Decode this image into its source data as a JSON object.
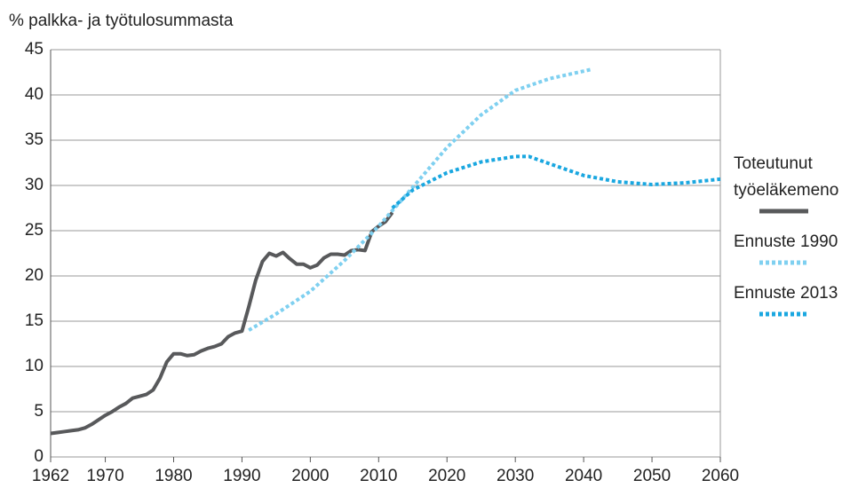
{
  "chart_data": {
    "type": "line",
    "y_label": "% palkka-  ja työtulosummasta",
    "xlim": [
      1962,
      2060
    ],
    "xticks": [
      1962,
      1970,
      1980,
      1990,
      2000,
      2010,
      2020,
      2030,
      2040,
      2050,
      2060
    ],
    "ylim": [
      0,
      45
    ],
    "yticks": [
      0,
      5,
      10,
      15,
      20,
      25,
      30,
      35,
      40,
      45
    ],
    "grid": true,
    "legend": "right",
    "series": [
      {
        "name": "Toteutunut työeläkemeno",
        "color": "#58595b",
        "style": "solid",
        "x": [
          1962,
          1963,
          1964,
          1965,
          1966,
          1967,
          1968,
          1969,
          1970,
          1971,
          1972,
          1973,
          1974,
          1975,
          1976,
          1977,
          1978,
          1979,
          1980,
          1981,
          1982,
          1983,
          1984,
          1985,
          1986,
          1987,
          1988,
          1989,
          1990,
          1991,
          1992,
          1993,
          1994,
          1995,
          1996,
          1997,
          1998,
          1999,
          2000,
          2001,
          2002,
          2003,
          2004,
          2005,
          2006,
          2007,
          2008,
          2009,
          2010,
          2011,
          2012
        ],
        "values": [
          2.6,
          2.7,
          2.8,
          2.9,
          3.0,
          3.2,
          3.6,
          4.1,
          4.6,
          5.0,
          5.5,
          5.9,
          6.5,
          6.7,
          6.9,
          7.4,
          8.7,
          10.5,
          11.4,
          11.4,
          11.2,
          11.3,
          11.7,
          12.0,
          12.2,
          12.5,
          13.3,
          13.7,
          13.9,
          16.6,
          19.5,
          21.6,
          22.5,
          22.2,
          22.6,
          21.9,
          21.3,
          21.3,
          20.9,
          21.2,
          22.0,
          22.4,
          22.4,
          22.3,
          22.8,
          22.9,
          22.8,
          24.9,
          25.5,
          26.0,
          27.0
        ]
      },
      {
        "name": "Ennuste 1990",
        "color": "#7fd0f0",
        "style": "dotted",
        "x": [
          1991,
          1995,
          2000,
          2005,
          2010,
          2015,
          2020,
          2025,
          2030,
          2035,
          2041
        ],
        "values": [
          14.0,
          15.8,
          18.3,
          21.7,
          25.5,
          29.8,
          34.2,
          37.8,
          40.5,
          41.8,
          42.8
        ]
      },
      {
        "name": "Ennuste 2013",
        "color": "#1aa7e0",
        "style": "dotted",
        "x": [
          2012,
          2015,
          2020,
          2025,
          2030,
          2032,
          2035,
          2040,
          2045,
          2050,
          2055,
          2060
        ],
        "values": [
          27.5,
          29.5,
          31.4,
          32.6,
          33.2,
          33.2,
          32.4,
          31.1,
          30.4,
          30.1,
          30.3,
          30.7
        ]
      }
    ]
  }
}
